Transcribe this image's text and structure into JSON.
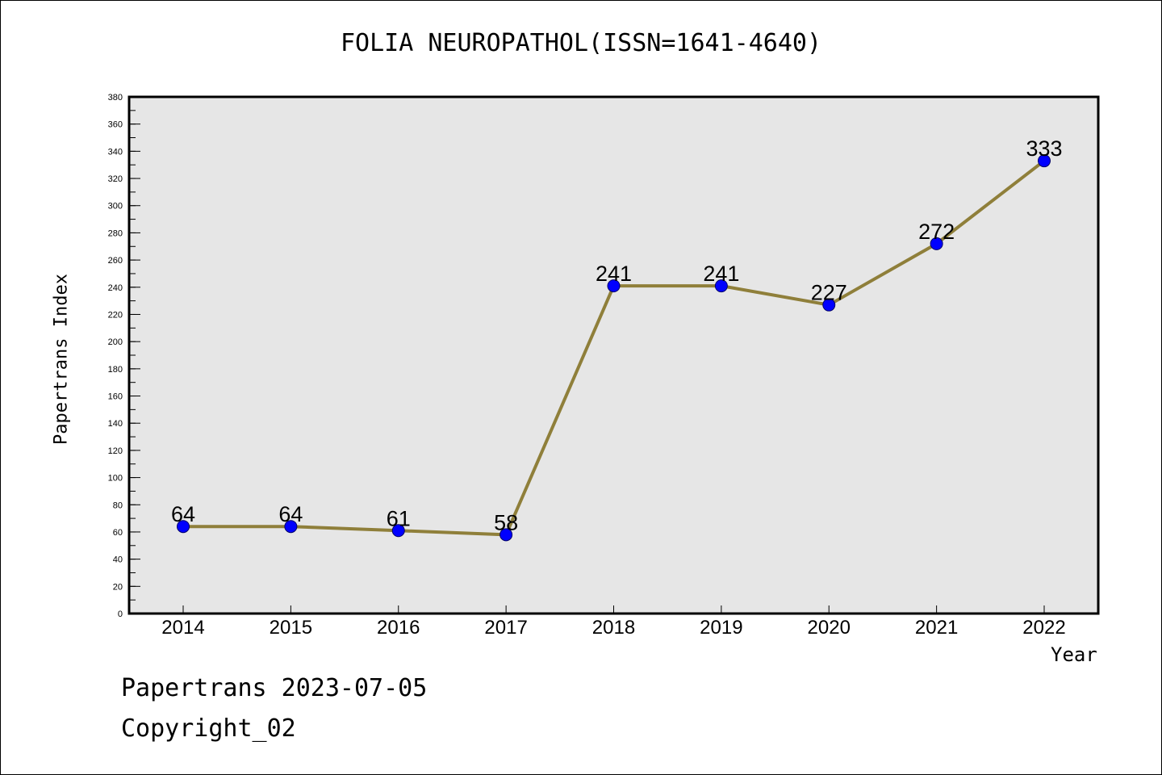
{
  "title": "FOLIA NEUROPATHOL(ISSN=1641-4640)",
  "footer": {
    "line1": "Papertrans 2023-07-05",
    "line2": "Copyright_02"
  },
  "colors": {
    "plot_bg": "#e6e6e6",
    "line": "#8f7f3a",
    "marker": "#0000ff",
    "marker_edge": "#00006a"
  },
  "chart_data": {
    "type": "line",
    "title": "FOLIA NEUROPATHOL(ISSN=1641-4640)",
    "xlabel": "Year",
    "ylabel": "Papertrans Index",
    "ylim": [
      0,
      380
    ],
    "yticks": [
      0,
      20,
      40,
      60,
      80,
      100,
      120,
      140,
      160,
      180,
      200,
      220,
      240,
      260,
      280,
      300,
      320,
      340,
      360,
      380
    ],
    "categories": [
      "2014",
      "2015",
      "2016",
      "2017",
      "2018",
      "2019",
      "2020",
      "2021",
      "2022"
    ],
    "series": [
      {
        "values": [
          64,
          64,
          61,
          58,
          241,
          241,
          227,
          272,
          333
        ]
      }
    ],
    "data_labels": [
      "64",
      "64",
      "61",
      "58",
      "241",
      "241",
      "227",
      "272",
      "333"
    ],
    "grid": false,
    "legend": "none"
  }
}
